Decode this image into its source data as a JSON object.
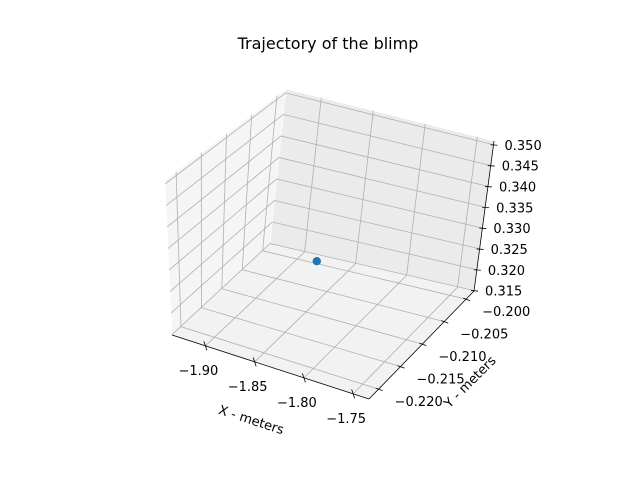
{
  "chart_data": {
    "type": "scatter",
    "title": "Trajectory of the blimp",
    "xlabel": "X - meters",
    "ylabel": "Y - meters",
    "zlabel": "",
    "x_ticks": [
      "−1.90",
      "−1.85",
      "−1.80",
      "−1.75"
    ],
    "y_ticks": [
      "−0.220",
      "−0.215",
      "−0.210",
      "−0.205",
      "−0.200"
    ],
    "z_ticks": [
      "0.315",
      "0.320",
      "0.325",
      "0.330",
      "0.335",
      "0.340",
      "0.345",
      "0.350"
    ],
    "xlim": [
      -1.9339,
      -1.7339
    ],
    "ylim": [
      -0.2222,
      -0.1982
    ],
    "zlim": [
      0.3149,
      0.3509
    ],
    "points": [
      {
        "x": -1.8339,
        "y": -0.2102,
        "z": 0.3289
      }
    ],
    "marker_color": "#1f77b4",
    "pane_colors": [
      "#f2f2f2",
      "#f5f5f5",
      "#ebebeb"
    ],
    "grid": true
  }
}
